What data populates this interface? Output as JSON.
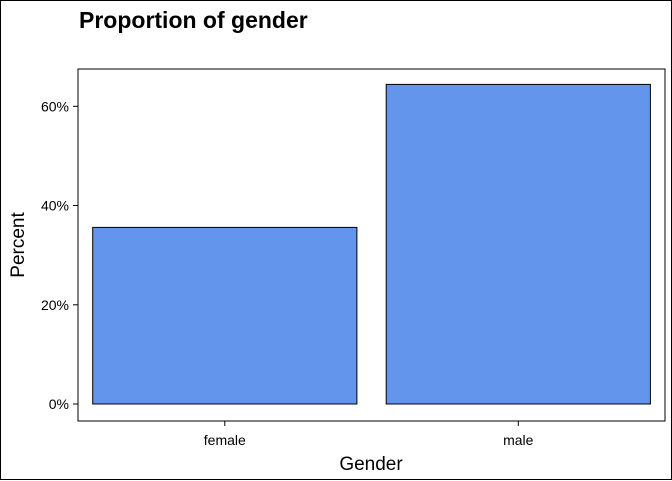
{
  "chart_data": {
    "type": "bar",
    "title": "Proportion of gender",
    "xlabel": "Gender",
    "ylabel": "Percent",
    "categories": [
      "female",
      "male"
    ],
    "values": [
      35.6,
      64.4
    ],
    "ylim": [
      0,
      67.4
    ],
    "yticks": [
      0,
      20,
      40,
      60
    ],
    "ytick_labels": [
      "0%",
      "20%",
      "40%",
      "60%"
    ],
    "grid": false,
    "bar_color": "#6495ED",
    "bar_outline_color": "#000000"
  }
}
